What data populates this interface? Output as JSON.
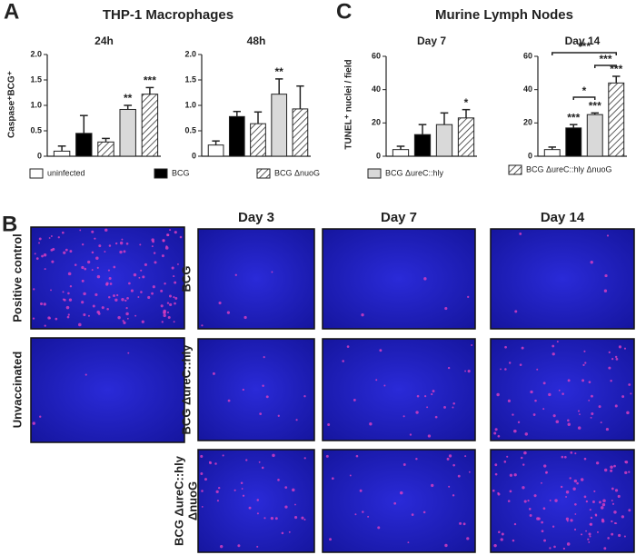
{
  "panels": {
    "A": {
      "label": "A",
      "title": "THP-1 Macrophages",
      "y_label": "Caspase⁺BCG⁺",
      "legend": [
        {
          "name": "uninfected",
          "fill": "#ffffff"
        },
        {
          "name": "BCG",
          "fill": "#000000"
        },
        {
          "name": "BCG ΔnuoG",
          "fill": "hatch"
        }
      ]
    },
    "C": {
      "label": "C",
      "title": "Murine Lymph Nodes",
      "y_label": "TUNEL⁺ nuclei / field",
      "legend": [
        {
          "name": "BCG ΔureC::hly",
          "fill": "#d9d9d9"
        },
        {
          "name": "BCG ΔureC::hly ΔnuoG",
          "fill": "hatch"
        }
      ]
    },
    "B": {
      "label": "B",
      "controls": [
        "Positive control",
        "Unvaccinated"
      ],
      "columns": [
        "Day 3",
        "Day 7",
        "Day 14"
      ],
      "rows": [
        [
          "BCG"
        ],
        [
          "BCG ΔureC::hly"
        ],
        [
          "BCG ΔureC::hly",
          "ΔnuoG"
        ]
      ]
    }
  },
  "chart_data": [
    {
      "type": "bar",
      "title": "24h",
      "ylim": [
        0,
        2
      ],
      "yticks": [
        0,
        0.5,
        {
          "value": 1,
          "label": "1.0"
        },
        1.5,
        {
          "value": 2,
          "label": "2.0"
        }
      ],
      "values": [
        0.1,
        0.45,
        0.28,
        0.92,
        1.22
      ],
      "errors": [
        0.1,
        0.35,
        0.07,
        0.08,
        0.13
      ],
      "fills": [
        "#ffffff",
        "#000000",
        "hatch",
        "#d9d9d9",
        "hatch"
      ],
      "annotations": [
        null,
        null,
        null,
        "**",
        "***"
      ]
    },
    {
      "type": "bar",
      "title": "48h",
      "ylim": [
        0,
        2
      ],
      "yticks": [
        0,
        0.5,
        {
          "value": 1,
          "label": "1.0"
        },
        1.5,
        {
          "value": 2,
          "label": "2.0"
        }
      ],
      "values": [
        0.22,
        0.78,
        0.64,
        1.22,
        0.93
      ],
      "errors": [
        0.08,
        0.1,
        0.23,
        0.3,
        0.45
      ],
      "fills": [
        "#ffffff",
        "#000000",
        "hatch",
        "#d9d9d9",
        "hatch"
      ],
      "annotations": [
        null,
        null,
        null,
        "**",
        null
      ]
    },
    {
      "type": "bar",
      "title": "Day 7",
      "ylim": [
        0,
        60
      ],
      "yticks": [
        0,
        20,
        40,
        60
      ],
      "values": [
        4,
        13,
        19,
        23
      ],
      "errors": [
        2,
        6,
        7,
        5
      ],
      "fills": [
        "#ffffff",
        "#000000",
        "#d9d9d9",
        "hatch"
      ],
      "annotations": [
        null,
        null,
        null,
        "*"
      ]
    },
    {
      "type": "bar",
      "title": "Day 14",
      "ylim": [
        0,
        60
      ],
      "yticks": [
        0,
        20,
        40,
        60
      ],
      "values": [
        4,
        17,
        25,
        44
      ],
      "errors": [
        1.5,
        2,
        1,
        4
      ],
      "fills": [
        "#ffffff",
        "#000000",
        "#d9d9d9",
        "hatch"
      ],
      "annotations": [
        null,
        "***",
        "***",
        "***"
      ],
      "brackets": [
        "*",
        "***",
        "***"
      ]
    }
  ]
}
